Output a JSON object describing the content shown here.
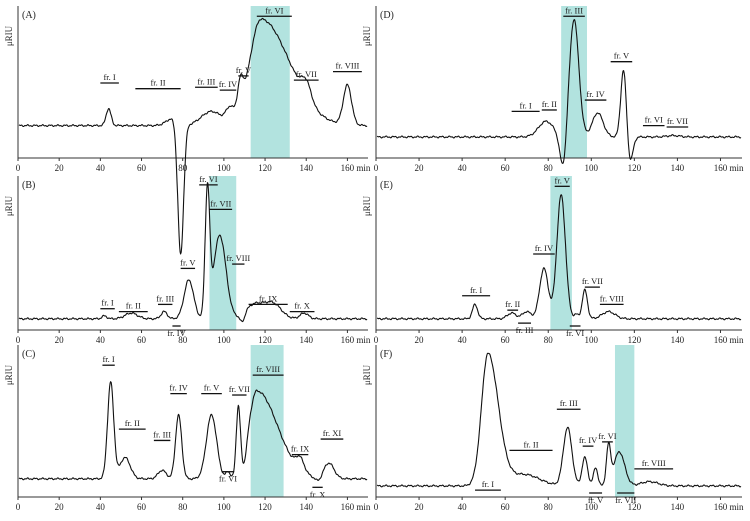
{
  "chart_data": [
    {
      "id": "A",
      "type": "line",
      "panel_label": "(A)",
      "ylabel": "μRIU",
      "xunit": "min",
      "xlim": [
        0,
        170
      ],
      "xticks": [
        0,
        20,
        40,
        60,
        80,
        100,
        120,
        140,
        160
      ],
      "highlight": {
        "x0": 113,
        "x1": 132,
        "color": "#b2e3df"
      },
      "baseline": 0.2,
      "peaks": [
        {
          "x": 44,
          "h": 0.12,
          "w": 1.2
        },
        {
          "x": 79,
          "h": -0.93,
          "w": 1.4
        },
        {
          "x": 75,
          "h": 0.05,
          "w": 3
        },
        {
          "x": 94,
          "h": 0.1,
          "w": 5
        },
        {
          "x": 103,
          "h": 0.1,
          "w": 2
        },
        {
          "x": 108,
          "h": 0.2,
          "w": 1.4
        },
        {
          "x": 118,
          "h": 0.75,
          "w": 5.5,
          "tail": 2.5
        },
        {
          "x": 140,
          "h": 0.12,
          "w": 2.4
        },
        {
          "x": 160,
          "h": 0.28,
          "w": 2
        }
      ],
      "fractions": [
        {
          "label": "fr. I",
          "x0": 40,
          "x1": 49,
          "y": 0.5,
          "pos": "above"
        },
        {
          "label": "fr. II",
          "x0": 57,
          "x1": 79,
          "y": 0.46,
          "pos": "above"
        },
        {
          "label": "fr. III",
          "x0": 86,
          "x1": 97,
          "y": 0.47,
          "pos": "above"
        },
        {
          "label": "fr. IV",
          "x0": 98,
          "x1": 106,
          "y": 0.45,
          "pos": "above"
        },
        {
          "label": "fr. V",
          "x0": 107,
          "x1": 112,
          "y": 0.55,
          "pos": "above"
        },
        {
          "label": "fr. VI",
          "x0": 116,
          "x1": 133,
          "y": 0.97,
          "pos": "above"
        },
        {
          "label": "fr. VII",
          "x0": 134,
          "x1": 146,
          "y": 0.52,
          "pos": "above"
        },
        {
          "label": "fr. VIII",
          "x0": 153,
          "x1": 167,
          "y": 0.58,
          "pos": "above"
        }
      ]
    },
    {
      "id": "D",
      "type": "line",
      "panel_label": "(D)",
      "ylabel": "μRIU",
      "xunit": "min",
      "xlim": [
        0,
        170
      ],
      "xticks": [
        0,
        20,
        40,
        60,
        80,
        100,
        120,
        140,
        160
      ],
      "highlight": {
        "x0": 86,
        "x1": 98,
        "color": "#b2e3df"
      },
      "baseline": 0.12,
      "peaks": [
        {
          "x": 79,
          "h": 0.11,
          "w": 3.5
        },
        {
          "x": 87,
          "h": -0.25,
          "w": 1.5
        },
        {
          "x": 92,
          "h": 0.83,
          "w": 2.2
        },
        {
          "x": 103,
          "h": 0.17,
          "w": 2.5
        },
        {
          "x": 115,
          "h": 0.48,
          "w": 1.3
        },
        {
          "x": 118,
          "h": -0.18,
          "w": 1.3
        },
        {
          "x": 138,
          "h": 0.01,
          "w": 3
        }
      ],
      "fractions": [
        {
          "label": "fr. I",
          "x0": 63,
          "x1": 76,
          "y": 0.3,
          "pos": "above"
        },
        {
          "label": "fr. II",
          "x0": 77,
          "x1": 84,
          "y": 0.31,
          "pos": "above"
        },
        {
          "label": "fr. III",
          "x0": 87,
          "x1": 97,
          "y": 0.97,
          "pos": "above"
        },
        {
          "label": "fr. IV",
          "x0": 97,
          "x1": 107,
          "y": 0.38,
          "pos": "above"
        },
        {
          "label": "fr. V",
          "x0": 109,
          "x1": 119,
          "y": 0.65,
          "pos": "above"
        },
        {
          "label": "fr. VI",
          "x0": 124,
          "x1": 134,
          "y": 0.2,
          "pos": "above"
        },
        {
          "label": "fr. VII",
          "x0": 135,
          "x1": 145,
          "y": 0.19,
          "pos": "above"
        }
      ]
    },
    {
      "id": "B",
      "type": "line",
      "panel_label": "(B)",
      "ylabel": "μRIU",
      "xunit": "min",
      "xlim": [
        0,
        170
      ],
      "xticks": [
        0,
        20,
        40,
        60,
        80,
        100,
        120,
        140,
        160
      ],
      "highlight": {
        "x0": 93,
        "x1": 106,
        "color": "#b2e3df"
      },
      "baseline": 0.05,
      "peaks": [
        {
          "x": 42,
          "h": 0.02,
          "w": 1.2
        },
        {
          "x": 55,
          "h": 0.04,
          "w": 3
        },
        {
          "x": 71,
          "h": 0.05,
          "w": 1.5
        },
        {
          "x": 83,
          "h": 0.27,
          "w": 2.3
        },
        {
          "x": 92,
          "h": 0.87,
          "w": 1.1
        },
        {
          "x": 98,
          "h": 0.58,
          "w": 3
        },
        {
          "x": 109,
          "h": -0.06,
          "w": 1.2
        },
        {
          "x": 115,
          "h": 0.1,
          "w": 4.5
        },
        {
          "x": 124,
          "h": 0.1,
          "w": 4
        },
        {
          "x": 139,
          "h": 0.04,
          "w": 2
        }
      ],
      "fractions": [
        {
          "label": "fr. I",
          "x0": 40,
          "x1": 47,
          "y": 0.12,
          "pos": "above"
        },
        {
          "label": "fr. II",
          "x0": 49,
          "x1": 63,
          "y": 0.1,
          "pos": "above"
        },
        {
          "label": "fr. III",
          "x0": 68,
          "x1": 75,
          "y": 0.15,
          "pos": "above"
        },
        {
          "label": "fr. IV",
          "x0": 75,
          "x1": 79,
          "y": 0.0,
          "pos": "below"
        },
        {
          "label": "fr. V",
          "x0": 79,
          "x1": 86,
          "y": 0.4,
          "pos": "above"
        },
        {
          "label": "fr. VI",
          "x0": 88,
          "x1": 97,
          "y": 0.98,
          "pos": "above"
        },
        {
          "label": "fr. VII",
          "x0": 93,
          "x1": 104,
          "y": 0.81,
          "pos": "above"
        },
        {
          "label": "fr. VIII",
          "x0": 104,
          "x1": 110,
          "y": 0.43,
          "pos": "above"
        },
        {
          "label": "fr. IX",
          "x0": 112,
          "x1": 131,
          "y": 0.15,
          "pos": "above"
        },
        {
          "label": "fr. X",
          "x0": 132,
          "x1": 144,
          "y": 0.1,
          "pos": "above"
        }
      ]
    },
    {
      "id": "E",
      "type": "line",
      "panel_label": "(E)",
      "ylabel": "μRIU",
      "xunit": "min",
      "xlim": [
        0,
        170
      ],
      "xticks": [
        0,
        20,
        40,
        60,
        80,
        100,
        120,
        140,
        160
      ],
      "highlight": {
        "x0": 81,
        "x1": 91,
        "color": "#b2e3df"
      },
      "baseline": 0.05,
      "peaks": [
        {
          "x": 46,
          "h": 0.1,
          "w": 1.2
        },
        {
          "x": 63,
          "h": 0.04,
          "w": 2
        },
        {
          "x": 70,
          "h": 0.05,
          "w": 2
        },
        {
          "x": 78,
          "h": 0.35,
          "w": 2
        },
        {
          "x": 86,
          "h": 0.86,
          "w": 2
        },
        {
          "x": 93,
          "h": 0.03,
          "w": 1
        },
        {
          "x": 97,
          "h": 0.2,
          "w": 1.2
        },
        {
          "x": 108,
          "h": 0.05,
          "w": 3
        }
      ],
      "fractions": [
        {
          "label": "fr. I",
          "x0": 40,
          "x1": 53,
          "y": 0.21,
          "pos": "above"
        },
        {
          "label": "fr. II",
          "x0": 61,
          "x1": 66,
          "y": 0.11,
          "pos": "above"
        },
        {
          "label": "fr. III",
          "x0": 66,
          "x1": 72,
          "y": 0.02,
          "pos": "below"
        },
        {
          "label": "fr. IV",
          "x0": 73,
          "x1": 83,
          "y": 0.5,
          "pos": "above"
        },
        {
          "label": "fr. V",
          "x0": 83,
          "x1": 90,
          "y": 0.97,
          "pos": "above"
        },
        {
          "label": "fr. VI",
          "x0": 90,
          "x1": 95,
          "y": 0.0,
          "pos": "below"
        },
        {
          "label": "fr. VII",
          "x0": 97,
          "x1": 104,
          "y": 0.27,
          "pos": "above"
        },
        {
          "label": "fr. VIII",
          "x0": 104,
          "x1": 115,
          "y": 0.15,
          "pos": "above"
        }
      ]
    },
    {
      "id": "C",
      "type": "line",
      "panel_label": "(C)",
      "ylabel": "μRIU",
      "xunit": "min",
      "xlim": [
        0,
        170
      ],
      "xticks": [
        0,
        20,
        40,
        60,
        80,
        100,
        120,
        140,
        160
      ],
      "highlight": {
        "x0": 113,
        "x1": 129,
        "color": "#b2e3df"
      },
      "baseline": 0.1,
      "peaks": [
        {
          "x": 45,
          "h": 0.68,
          "w": 1.5
        },
        {
          "x": 52,
          "h": 0.15,
          "w": 2.5
        },
        {
          "x": 70,
          "h": 0.06,
          "w": 2
        },
        {
          "x": 78,
          "h": 0.45,
          "w": 1.5
        },
        {
          "x": 94,
          "h": 0.45,
          "w": 2.5
        },
        {
          "x": 102,
          "h": 0.05,
          "w": 1
        },
        {
          "x": 107,
          "h": 0.47,
          "w": 1
        },
        {
          "x": 110,
          "h": -0.08,
          "w": 1.2
        },
        {
          "x": 116,
          "h": 0.62,
          "w": 4,
          "tail": 2.5
        },
        {
          "x": 137,
          "h": 0.09,
          "w": 2
        },
        {
          "x": 146,
          "h": -0.03,
          "w": 1.5
        },
        {
          "x": 151,
          "h": 0.11,
          "w": 2.5
        }
      ],
      "fractions": [
        {
          "label": "fr. I",
          "x0": 41,
          "x1": 47,
          "y": 0.9,
          "pos": "above"
        },
        {
          "label": "fr. II",
          "x0": 49,
          "x1": 62,
          "y": 0.45,
          "pos": "above"
        },
        {
          "label": "fr. III",
          "x0": 66,
          "x1": 74,
          "y": 0.37,
          "pos": "above"
        },
        {
          "label": "fr. IV",
          "x0": 74,
          "x1": 82,
          "y": 0.7,
          "pos": "above"
        },
        {
          "label": "fr. V",
          "x0": 89,
          "x1": 99,
          "y": 0.7,
          "pos": "above"
        },
        {
          "label": "fr. VI",
          "x0": 99,
          "x1": 105,
          "y": 0.15,
          "pos": "below"
        },
        {
          "label": "fr. VII",
          "x0": 104,
          "x1": 111,
          "y": 0.69,
          "pos": "above"
        },
        {
          "label": "fr. VIII",
          "x0": 114,
          "x1": 129,
          "y": 0.83,
          "pos": "above"
        },
        {
          "label": "fr. IX",
          "x0": 133,
          "x1": 141,
          "y": 0.27,
          "pos": "above"
        },
        {
          "label": "fr. X",
          "x0": 143,
          "x1": 148,
          "y": 0.04,
          "pos": "below"
        },
        {
          "label": "fr. XI",
          "x0": 147,
          "x1": 158,
          "y": 0.38,
          "pos": "above"
        }
      ]
    },
    {
      "id": "F",
      "type": "line",
      "panel_label": "(F)",
      "ylabel": "μRIU",
      "xunit": "min",
      "xlim": [
        0,
        170
      ],
      "xticks": [
        0,
        20,
        40,
        60,
        80,
        100,
        120,
        140,
        160
      ],
      "highlight": {
        "x0": 111,
        "x1": 120,
        "color": "#b2e3df"
      },
      "baseline": 0.05,
      "peaks": [
        {
          "x": 52,
          "h": 0.93,
          "w": 3,
          "tail": 1.6
        },
        {
          "x": 69,
          "h": 0.08,
          "w": 7
        },
        {
          "x": 89,
          "h": 0.41,
          "w": 2
        },
        {
          "x": 97,
          "h": 0.2,
          "w": 1.3
        },
        {
          "x": 102,
          "h": 0.13,
          "w": 1
        },
        {
          "x": 108,
          "h": 0.27,
          "w": 1
        },
        {
          "x": 113,
          "h": 0.24,
          "w": 2.5
        },
        {
          "x": 127,
          "h": 0.03,
          "w": 4
        }
      ],
      "fractions": [
        {
          "label": "fr. I",
          "x0": 46,
          "x1": 58,
          "y": 0.02,
          "pos": "above"
        },
        {
          "label": "fr. II",
          "x0": 62,
          "x1": 82,
          "y": 0.3,
          "pos": "above"
        },
        {
          "label": "fr. III",
          "x0": 84,
          "x1": 95,
          "y": 0.59,
          "pos": "above"
        },
        {
          "label": "fr. IV",
          "x0": 96,
          "x1": 101,
          "y": 0.33,
          "pos": "above"
        },
        {
          "label": "fr. V",
          "x0": 99,
          "x1": 105,
          "y": 0.0,
          "pos": "below"
        },
        {
          "label": "fr. VI",
          "x0": 105,
          "x1": 110,
          "y": 0.36,
          "pos": "above"
        },
        {
          "label": "fr. VII",
          "x0": 112,
          "x1": 120,
          "y": 0.0,
          "pos": "below"
        },
        {
          "label": "fr. VIII",
          "x0": 120,
          "x1": 138,
          "y": 0.17,
          "pos": "above"
        }
      ]
    }
  ]
}
